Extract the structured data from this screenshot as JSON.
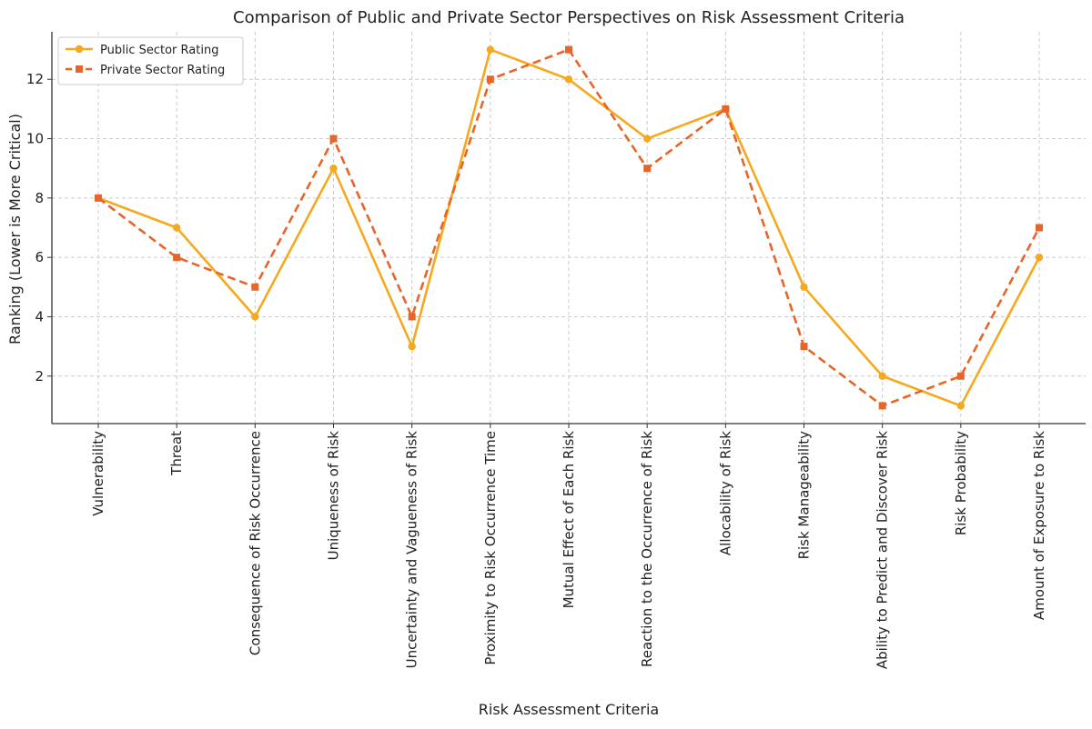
{
  "chart_data": {
    "type": "line",
    "title": "Comparison of Public and Private Sector Perspectives on Risk Assessment Criteria",
    "xlabel": "Risk Assessment Criteria",
    "ylabel": "Ranking (Lower is More Critical)",
    "categories": [
      "Vulnerability",
      "Threat",
      "Consequence of Risk Occurrence",
      "Uniqueness of Risk",
      "Uncertainty and Vagueness of Risk",
      "Proximity to Risk Occurrence Time",
      "Mutual Effect of Each Risk",
      "Reaction to the Occurrence of Risk",
      "Allocability of Risk",
      "Risk Manageability",
      "Ability to Predict and Discover Risk",
      "Risk Probability",
      "Amount of Exposure to Risk"
    ],
    "series": [
      {
        "name": "Public Sector Rating",
        "values": [
          8,
          7,
          4,
          9,
          3,
          13,
          12,
          10,
          11,
          5,
          2,
          1,
          6
        ],
        "color": "#F5A91E",
        "marker": "circle",
        "line_style": "solid"
      },
      {
        "name": "Private Sector Rating",
        "values": [
          8,
          6,
          5,
          10,
          4,
          12,
          13,
          9,
          11,
          3,
          1,
          2,
          7
        ],
        "color": "#E8652A",
        "marker": "square",
        "line_style": "dashed"
      }
    ],
    "ylim": [
      0.4,
      13.6
    ],
    "yticks": [
      2,
      4,
      6,
      8,
      10,
      12
    ],
    "grid": true,
    "legend_position": "top-left"
  }
}
